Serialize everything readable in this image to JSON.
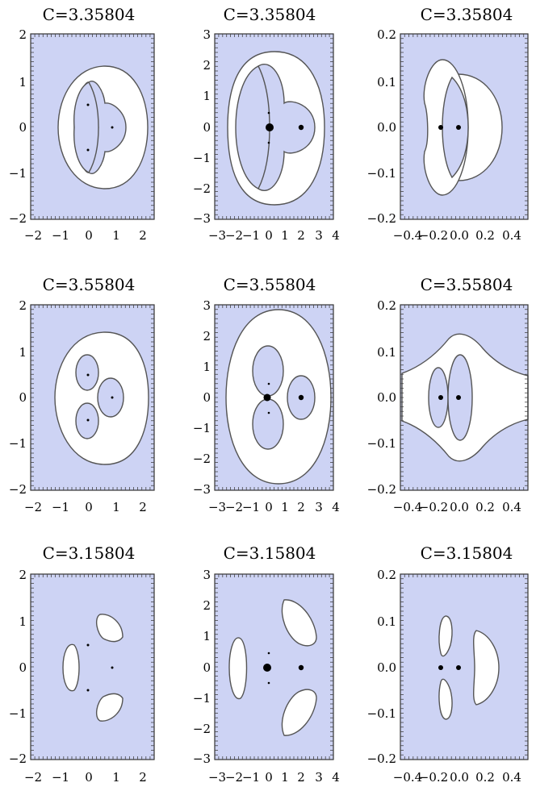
{
  "figure": {
    "colors": {
      "forbidden": "#cdd3f4",
      "allowed": "#ffffff",
      "boundary": "#555555",
      "point": "#000000"
    },
    "panels": [
      {
        "title": "C=3.35804",
        "xticks": [
          "−2",
          "−1",
          "0",
          "1",
          "2"
        ],
        "yticks": [
          "2",
          "1",
          "0",
          "−1",
          "−2"
        ]
      },
      {
        "title": "C=3.35804",
        "xticks": [
          "−3",
          "−2",
          "−1",
          "0",
          "1",
          "2",
          "3",
          "4"
        ],
        "yticks": [
          "3",
          "2",
          "1",
          "0",
          "−1",
          "−2",
          "−3"
        ]
      },
      {
        "title": "C=3.35804",
        "xticks": [
          "−0.4",
          "−0.2",
          "0.0",
          "0.2",
          "0.4"
        ],
        "yticks": [
          "0.2",
          "0.1",
          "0.0",
          "−0.1",
          "−0.2"
        ]
      },
      {
        "title": "C=3.55804",
        "xticks": [
          "−2",
          "−1",
          "0",
          "1",
          "2"
        ],
        "yticks": [
          "2",
          "1",
          "0",
          "−1",
          "−2"
        ]
      },
      {
        "title": "C=3.55804",
        "xticks": [
          "−3",
          "−2",
          "−1",
          "0",
          "1",
          "2",
          "3",
          "4"
        ],
        "yticks": [
          "3",
          "2",
          "1",
          "0",
          "−1",
          "−2",
          "−3"
        ]
      },
      {
        "title": "C=3.55804",
        "xticks": [
          "−0.4",
          "−0.2",
          "0.0",
          "0.2",
          "0.4"
        ],
        "yticks": [
          "0.2",
          "0.1",
          "0.0",
          "−0.1",
          "−0.2"
        ]
      },
      {
        "title": "C=3.15804",
        "xticks": [
          "−2",
          "−1",
          "0",
          "1",
          "2"
        ],
        "yticks": [
          "2",
          "1",
          "0",
          "−1",
          "−2"
        ]
      },
      {
        "title": "C=3.15804",
        "xticks": [
          "−3",
          "−2",
          "−1",
          "0",
          "1",
          "2",
          "3",
          "4"
        ],
        "yticks": [
          "3",
          "2",
          "1",
          "0",
          "−1",
          "−2",
          "−3"
        ]
      },
      {
        "title": "C=3.15804",
        "xticks": [
          "−0.4",
          "−0.2",
          "0.0",
          "0.2",
          "0.4"
        ],
        "yticks": [
          "0.2",
          "0.1",
          "0.0",
          "−0.1",
          "−0.2"
        ]
      }
    ]
  }
}
